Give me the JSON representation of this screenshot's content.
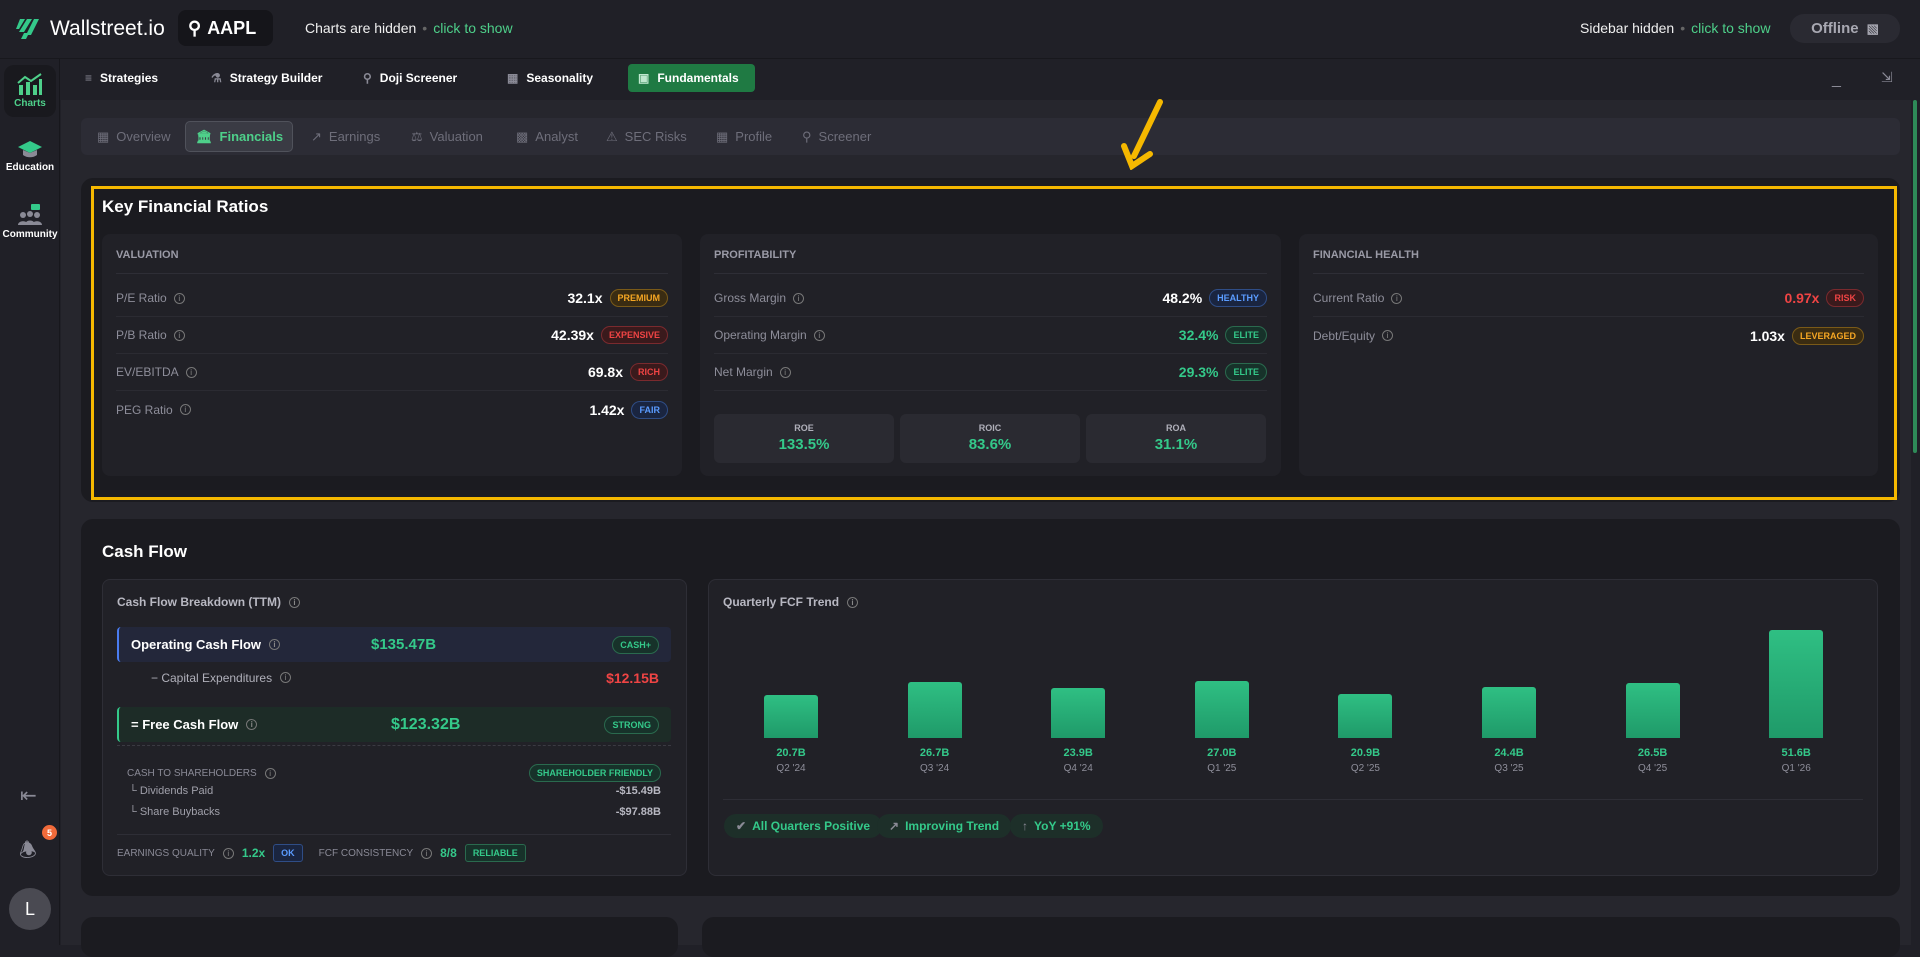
{
  "app": {
    "name": "Wallstreet.io",
    "ticker": "AAPL",
    "charts_hint": "Charts are hidden",
    "sidebar_hint": "Sidebar hidden",
    "click_to_show": "click to show",
    "offline": "Offline",
    "notifications": "5",
    "avatar": "L"
  },
  "sidebar": {
    "items": [
      {
        "label": "Charts"
      },
      {
        "label": "Education"
      },
      {
        "label": "Community"
      }
    ]
  },
  "tools": [
    {
      "label": "Strategies"
    },
    {
      "label": "Strategy Builder"
    },
    {
      "label": "Doji Screener"
    },
    {
      "label": "Seasonality"
    },
    {
      "label": "Fundamentals"
    }
  ],
  "subtabs": [
    {
      "label": "Overview"
    },
    {
      "label": "Financials"
    },
    {
      "label": "Earnings"
    },
    {
      "label": "Valuation"
    },
    {
      "label": "Analyst"
    },
    {
      "label": "SEC Risks"
    },
    {
      "label": "Profile"
    },
    {
      "label": "Screener"
    }
  ],
  "ratios": {
    "title": "Key Financial Ratios",
    "valuation": {
      "title": "VALUATION",
      "rows": [
        {
          "label": "P/E Ratio",
          "value": "32.1x",
          "badge": "PREMIUM"
        },
        {
          "label": "P/B Ratio",
          "value": "42.39x",
          "badge": "EXPENSIVE"
        },
        {
          "label": "EV/EBITDA",
          "value": "69.8x",
          "badge": "RICH"
        },
        {
          "label": "PEG Ratio",
          "value": "1.42x",
          "badge": "FAIR"
        }
      ]
    },
    "profitability": {
      "title": "PROFITABILITY",
      "rows": [
        {
          "label": "Gross Margin",
          "value": "48.2%",
          "badge": "HEALTHY"
        },
        {
          "label": "Operating Margin",
          "value": "32.4%",
          "badge": "ELITE"
        },
        {
          "label": "Net Margin",
          "value": "29.3%",
          "badge": "ELITE"
        }
      ],
      "metrics": [
        {
          "label": "ROE",
          "value": "133.5%"
        },
        {
          "label": "ROIC",
          "value": "83.6%"
        },
        {
          "label": "ROA",
          "value": "31.1%"
        }
      ]
    },
    "health": {
      "title": "FINANCIAL HEALTH",
      "rows": [
        {
          "label": "Current Ratio",
          "value": "0.97x",
          "badge": "RISK"
        },
        {
          "label": "Debt/Equity",
          "value": "1.03x",
          "badge": "LEVERAGED"
        }
      ]
    }
  },
  "cashflow": {
    "title": "Cash Flow",
    "breakdown_title": "Cash Flow Breakdown (TTM)",
    "ocf": {
      "label": "Operating Cash Flow",
      "value": "$135.47B",
      "badge": "CASH+"
    },
    "capex": {
      "label": "− Capital Expenditures",
      "value": "$12.15B"
    },
    "fcf": {
      "label": "= Free Cash Flow",
      "value": "$123.32B",
      "badge": "STRONG"
    },
    "shareholders": {
      "label": "CASH TO SHAREHOLDERS",
      "badge": "SHAREHOLDER FRIENDLY",
      "dividends_label": "└ Dividends Paid",
      "dividends": "-$15.49B",
      "buybacks_label": "└ Share Buybacks",
      "buybacks": "-$97.88B"
    },
    "quality": {
      "label": "EARNINGS QUALITY",
      "value": "1.2x",
      "badge": "OK",
      "consistency_label": "FCF CONSISTENCY",
      "consistency": "8/8",
      "consistency_badge": "RELIABLE"
    },
    "trend_title": "Quarterly FCF Trend",
    "pills": [
      "All Quarters Positive",
      "Improving Trend",
      "YoY +91%"
    ]
  },
  "chart_data": {
    "type": "bar",
    "title": "Quarterly FCF Trend",
    "categories": [
      "Q2 '24",
      "Q3 '24",
      "Q4 '24",
      "Q1 '25",
      "Q2 '25",
      "Q3 '25",
      "Q4 '25",
      "Q1 '26"
    ],
    "values": [
      20.7,
      26.7,
      23.9,
      27.0,
      20.9,
      24.4,
      26.5,
      51.6
    ],
    "labels": [
      "20.7B",
      "26.7B",
      "23.9B",
      "27.0B",
      "20.9B",
      "24.4B",
      "26.5B",
      "51.6B"
    ],
    "unit": "B USD",
    "ylim": [
      0,
      51.6
    ]
  }
}
